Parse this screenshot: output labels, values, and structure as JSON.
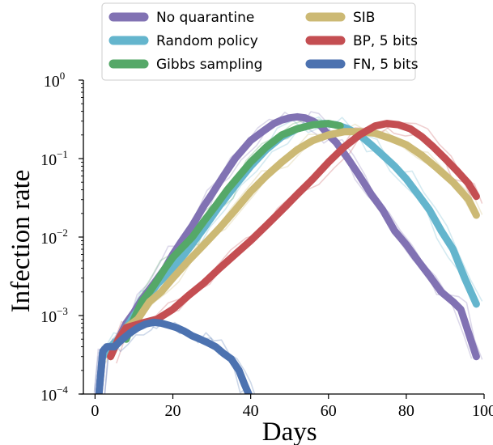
{
  "chart_data": {
    "type": "line",
    "title": "",
    "xlabel": "Days",
    "ylabel": "Infection rate",
    "xlim": [
      -3,
      100
    ],
    "ylim": [
      0.0001,
      1
    ],
    "yscale": "log",
    "grid": false,
    "legend_position": "top",
    "x_ticks": [
      {
        "value": 0,
        "label": "0"
      },
      {
        "value": 20,
        "label": "20"
      },
      {
        "value": 40,
        "label": "40"
      },
      {
        "value": 60,
        "label": "60"
      },
      {
        "value": 80,
        "label": "80"
      },
      {
        "value": 100,
        "label": "100"
      }
    ],
    "y_ticks": [
      {
        "value": 0.0001,
        "base": "10",
        "exp": "−4"
      },
      {
        "value": 0.001,
        "base": "10",
        "exp": "−3"
      },
      {
        "value": 0.01,
        "base": "10",
        "exp": "−2"
      },
      {
        "value": 0.1,
        "base": "10",
        "exp": "−1"
      },
      {
        "value": 1,
        "base": "10",
        "exp": "0"
      }
    ],
    "series": [
      {
        "name": "No quarantine",
        "color": "#8172b3",
        "points": [
          [
            1,
            0.0001
          ],
          [
            2,
            0.00035
          ],
          [
            4,
            0.0004
          ],
          [
            6,
            0.0005
          ],
          [
            8,
            0.0008
          ],
          [
            10,
            0.0011
          ],
          [
            12,
            0.0016
          ],
          [
            15,
            0.0025
          ],
          [
            18,
            0.004
          ],
          [
            20,
            0.006
          ],
          [
            22,
            0.0085
          ],
          [
            25,
            0.014
          ],
          [
            28,
            0.025
          ],
          [
            30,
            0.035
          ],
          [
            33,
            0.06
          ],
          [
            36,
            0.1
          ],
          [
            40,
            0.17
          ],
          [
            43,
            0.22
          ],
          [
            46,
            0.28
          ],
          [
            48,
            0.31
          ],
          [
            50,
            0.33
          ],
          [
            52,
            0.34
          ],
          [
            54,
            0.33
          ],
          [
            56,
            0.3
          ],
          [
            58,
            0.26
          ],
          [
            60,
            0.2
          ],
          [
            62,
            0.16
          ],
          [
            65,
            0.1
          ],
          [
            68,
            0.06
          ],
          [
            71,
            0.035
          ],
          [
            74,
            0.022
          ],
          [
            77,
            0.012
          ],
          [
            80,
            0.008
          ],
          [
            83,
            0.005
          ],
          [
            86,
            0.0032
          ],
          [
            89,
            0.002
          ],
          [
            92,
            0.0015
          ],
          [
            94,
            0.0012
          ],
          [
            96,
            0.0006
          ],
          [
            98,
            0.0003
          ]
        ]
      },
      {
        "name": "Random policy",
        "color": "#64b5cd",
        "points": [
          [
            2,
            0.0003
          ],
          [
            4,
            0.0004
          ],
          [
            6,
            0.0005
          ],
          [
            8,
            0.0007
          ],
          [
            10,
            0.001
          ],
          [
            13,
            0.0016
          ],
          [
            16,
            0.0025
          ],
          [
            20,
            0.004
          ],
          [
            24,
            0.007
          ],
          [
            28,
            0.013
          ],
          [
            32,
            0.025
          ],
          [
            36,
            0.045
          ],
          [
            40,
            0.08
          ],
          [
            44,
            0.13
          ],
          [
            48,
            0.19
          ],
          [
            52,
            0.24
          ],
          [
            56,
            0.27
          ],
          [
            59,
            0.28
          ],
          [
            62,
            0.27
          ],
          [
            65,
            0.24
          ],
          [
            68,
            0.2
          ],
          [
            71,
            0.15
          ],
          [
            74,
            0.11
          ],
          [
            77,
            0.08
          ],
          [
            80,
            0.055
          ],
          [
            83,
            0.035
          ],
          [
            86,
            0.022
          ],
          [
            89,
            0.012
          ],
          [
            92,
            0.007
          ],
          [
            95,
            0.003
          ],
          [
            98,
            0.0014
          ]
        ]
      },
      {
        "name": "Gibbs sampling",
        "color": "#55a868",
        "points": [
          [
            8,
            0.0005
          ],
          [
            10,
            0.0009
          ],
          [
            12,
            0.0015
          ],
          [
            14,
            0.002
          ],
          [
            16,
            0.0028
          ],
          [
            18,
            0.004
          ],
          [
            20,
            0.0055
          ],
          [
            22,
            0.007
          ],
          [
            25,
            0.01
          ],
          [
            28,
            0.016
          ],
          [
            31,
            0.025
          ],
          [
            34,
            0.04
          ],
          [
            37,
            0.06
          ],
          [
            40,
            0.09
          ],
          [
            44,
            0.14
          ],
          [
            48,
            0.2
          ],
          [
            52,
            0.24
          ],
          [
            56,
            0.27
          ],
          [
            60,
            0.28
          ],
          [
            63,
            0.26
          ]
        ]
      },
      {
        "name": "SIB",
        "color": "#ccb974",
        "points": [
          [
            4,
            0.0003
          ],
          [
            6,
            0.0005
          ],
          [
            8,
            0.0007
          ],
          [
            11,
            0.0009
          ],
          [
            14,
            0.0015
          ],
          [
            17,
            0.002
          ],
          [
            20,
            0.003
          ],
          [
            24,
            0.005
          ],
          [
            28,
            0.008
          ],
          [
            32,
            0.013
          ],
          [
            36,
            0.022
          ],
          [
            40,
            0.038
          ],
          [
            44,
            0.06
          ],
          [
            48,
            0.09
          ],
          [
            52,
            0.13
          ],
          [
            56,
            0.17
          ],
          [
            60,
            0.2
          ],
          [
            64,
            0.22
          ],
          [
            68,
            0.22
          ],
          [
            72,
            0.21
          ],
          [
            76,
            0.18
          ],
          [
            80,
            0.15
          ],
          [
            84,
            0.11
          ],
          [
            88,
            0.075
          ],
          [
            92,
            0.05
          ],
          [
            96,
            0.03
          ],
          [
            98,
            0.019
          ]
        ]
      },
      {
        "name": "BP, 5 bits",
        "color": "#c44e52",
        "points": [
          [
            4,
            0.0003
          ],
          [
            6,
            0.0005
          ],
          [
            8,
            0.0007
          ],
          [
            12,
            0.0008
          ],
          [
            16,
            0.0009
          ],
          [
            20,
            0.0012
          ],
          [
            24,
            0.0018
          ],
          [
            28,
            0.0026
          ],
          [
            32,
            0.004
          ],
          [
            36,
            0.006
          ],
          [
            40,
            0.009
          ],
          [
            44,
            0.014
          ],
          [
            48,
            0.022
          ],
          [
            52,
            0.035
          ],
          [
            56,
            0.055
          ],
          [
            60,
            0.09
          ],
          [
            64,
            0.14
          ],
          [
            68,
            0.2
          ],
          [
            72,
            0.26
          ],
          [
            75,
            0.28
          ],
          [
            78,
            0.27
          ],
          [
            81,
            0.24
          ],
          [
            84,
            0.19
          ],
          [
            87,
            0.14
          ],
          [
            90,
            0.1
          ],
          [
            93,
            0.07
          ],
          [
            96,
            0.048
          ],
          [
            98,
            0.033
          ]
        ]
      },
      {
        "name": "FN, 5 bits",
        "color": "#4c72b0",
        "points": [
          [
            1,
            0.0001
          ],
          [
            2,
            0.00035
          ],
          [
            3,
            0.0004
          ],
          [
            5,
            0.0004
          ],
          [
            7,
            0.0005
          ],
          [
            9,
            0.0006
          ],
          [
            11,
            0.0007
          ],
          [
            13,
            0.00078
          ],
          [
            15,
            0.00082
          ],
          [
            17,
            0.0008
          ],
          [
            19,
            0.00075
          ],
          [
            21,
            0.0007
          ],
          [
            23,
            0.00063
          ],
          [
            25,
            0.00055
          ],
          [
            27,
            0.0005
          ],
          [
            29,
            0.00045
          ],
          [
            31,
            0.0004
          ],
          [
            33,
            0.00033
          ],
          [
            35,
            0.00028
          ],
          [
            37,
            0.0002
          ],
          [
            38.5,
            0.00013
          ],
          [
            39.5,
            0.0001
          ]
        ]
      }
    ]
  }
}
